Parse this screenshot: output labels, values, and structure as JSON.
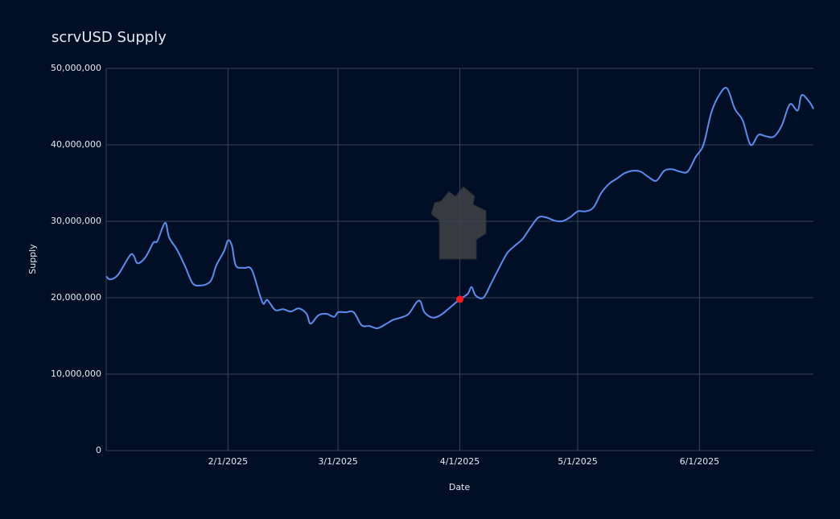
{
  "chart_data": {
    "type": "line",
    "title": "scrvUSD Supply",
    "xlabel": "Date",
    "ylabel": "Supply",
    "x": [
      "1/1/2025",
      "1/2/2025",
      "1/4/2025",
      "1/7/2025",
      "1/8/2025",
      "1/9/2025",
      "1/11/2025",
      "1/13/2025",
      "1/14/2025",
      "1/16/2025",
      "1/17/2025",
      "1/19/2025",
      "1/21/2025",
      "1/23/2025",
      "1/25/2025",
      "1/27/2025",
      "1/28/2025",
      "1/29/2025",
      "1/31/2025",
      "2/1/2025",
      "2/2/2025",
      "2/3/2025",
      "2/5/2025",
      "2/7/2025",
      "2/9/2025",
      "2/10/2025",
      "2/11/2025",
      "2/13/2025",
      "2/15/2025",
      "2/17/2025",
      "2/19/2025",
      "2/21/2025",
      "2/22/2025",
      "2/24/2025",
      "2/26/2025",
      "2/28/2025",
      "3/1/2025",
      "3/3/2025",
      "3/5/2025",
      "3/7/2025",
      "3/9/2025",
      "3/11/2025",
      "3/13/2025",
      "3/15/2025",
      "3/17/2025",
      "3/19/2025",
      "3/21/2025",
      "3/22/2025",
      "3/23/2025",
      "3/25/2025",
      "3/27/2025",
      "3/29/2025",
      "4/1/2025",
      "4/3/2025",
      "4/4/2025",
      "4/5/2025",
      "4/7/2025",
      "4/9/2025",
      "4/11/2025",
      "4/13/2025",
      "4/15/2025",
      "4/17/2025",
      "4/19/2025",
      "4/21/2025",
      "4/23/2025",
      "4/25/2025",
      "4/27/2025",
      "4/29/2025",
      "5/1/2025",
      "5/3/2025",
      "5/5/2025",
      "5/7/2025",
      "5/9/2025",
      "5/11/2025",
      "5/13/2025",
      "5/15/2025",
      "5/17/2025",
      "5/19/2025",
      "5/21/2025",
      "5/23/2025",
      "5/25/2025",
      "5/27/2025",
      "5/29/2025",
      "5/31/2025",
      "6/2/2025",
      "6/4/2025",
      "6/6/2025",
      "6/8/2025",
      "6/10/2025",
      "6/12/2025",
      "6/14/2025",
      "6/16/2025",
      "6/18/2025",
      "6/20/2025",
      "6/22/2025",
      "6/24/2025",
      "6/26/2025",
      "6/27/2025",
      "6/29/2025",
      "6/30/2025"
    ],
    "series": [
      {
        "name": "Supply",
        "color": "#5b8def",
        "values": [
          22800000,
          22400000,
          23000000,
          25500000,
          25500000,
          24500000,
          25300000,
          27200000,
          27400000,
          29800000,
          27900000,
          26300000,
          24200000,
          21900000,
          21600000,
          21900000,
          22600000,
          24200000,
          26100000,
          27500000,
          26800000,
          24200000,
          23900000,
          23700000,
          20500000,
          19200000,
          19700000,
          18400000,
          18500000,
          18200000,
          18600000,
          17900000,
          16600000,
          17700000,
          17900000,
          17500000,
          18100000,
          18100000,
          18100000,
          16400000,
          16300000,
          16000000,
          16500000,
          17100000,
          17400000,
          17900000,
          19400000,
          19500000,
          18100000,
          17400000,
          17700000,
          18500000,
          19800000,
          20500000,
          21400000,
          20300000,
          20000000,
          21900000,
          23900000,
          25800000,
          26800000,
          27700000,
          29200000,
          30500000,
          30500000,
          30100000,
          30000000,
          30500000,
          31300000,
          31300000,
          31800000,
          33700000,
          34900000,
          35600000,
          36300000,
          36600000,
          36500000,
          35800000,
          35300000,
          36600000,
          36800000,
          36500000,
          36500000,
          38400000,
          40000000,
          44200000,
          46500000,
          47400000,
          44700000,
          43200000,
          40000000,
          41300000,
          41100000,
          41100000,
          42600000,
          45300000,
          44500000,
          46500000,
          45600000,
          44700000
        ]
      }
    ],
    "highlight": {
      "x": "4/1/2025",
      "value": 19800000,
      "color": "#ff1a1a"
    },
    "xlim": [
      "1/1/2025",
      "6/30/2025"
    ],
    "xticks": [
      "2/1/2025",
      "3/1/2025",
      "4/1/2025",
      "5/1/2025",
      "6/1/2025"
    ],
    "ylim": [
      0,
      50000000
    ],
    "yticks": [
      0,
      {
        "value": 10000000,
        "label": "10,000,000"
      },
      {
        "value": 20000000,
        "label": "20,000,000"
      },
      {
        "value": 30000000,
        "label": "30,000,000"
      },
      {
        "value": 40000000,
        "label": "40,000,000"
      },
      {
        "value": 50000000,
        "label": "50,000,000"
      }
    ],
    "grid": true
  }
}
